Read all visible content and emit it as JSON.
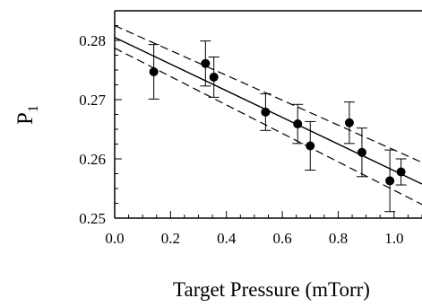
{
  "chart_data": {
    "type": "scatter",
    "xlabel": "Target Pressure (mTorr)",
    "ylabel_main": "P",
    "ylabel_sub": "1",
    "xlim": [
      0.0,
      1.1
    ],
    "ylim": [
      0.25,
      0.285
    ],
    "x_ticks": [
      0.0,
      0.2,
      0.4,
      0.6,
      0.8,
      1.0
    ],
    "x_tick_labels": [
      "0.0",
      "0.2",
      "0.4",
      "0.6",
      "0.8",
      "1.0"
    ],
    "x_minor_step": 0.05,
    "y_ticks": [
      0.25,
      0.26,
      0.27,
      0.28
    ],
    "y_tick_labels": [
      "0.25",
      "0.26",
      "0.27",
      "0.28"
    ],
    "y_minor_step": 0.0025,
    "grid": false,
    "points": [
      {
        "x": 0.14,
        "y": 0.2747,
        "err": 0.0046
      },
      {
        "x": 0.325,
        "y": 0.2761,
        "err": 0.0038
      },
      {
        "x": 0.355,
        "y": 0.2738,
        "err": 0.0034
      },
      {
        "x": 0.54,
        "y": 0.2679,
        "err": 0.0031
      },
      {
        "x": 0.655,
        "y": 0.2659,
        "err": 0.0033
      },
      {
        "x": 0.7,
        "y": 0.2622,
        "err": 0.0041
      },
      {
        "x": 0.84,
        "y": 0.2661,
        "err": 0.0035
      },
      {
        "x": 0.885,
        "y": 0.2611,
        "err": 0.0041
      },
      {
        "x": 0.985,
        "y": 0.2563,
        "err": 0.0052
      },
      {
        "x": 1.025,
        "y": 0.2578,
        "err": 0.0022
      }
    ],
    "fit_line": {
      "intercept": 0.2805,
      "slope": -0.0225
    },
    "confidence_band": [
      {
        "intercept": 0.2825,
        "slope": -0.021
      },
      {
        "intercept": 0.2787,
        "slope": -0.024
      }
    ],
    "colors": {
      "ink": "#000000",
      "background": "#ffffff"
    }
  }
}
